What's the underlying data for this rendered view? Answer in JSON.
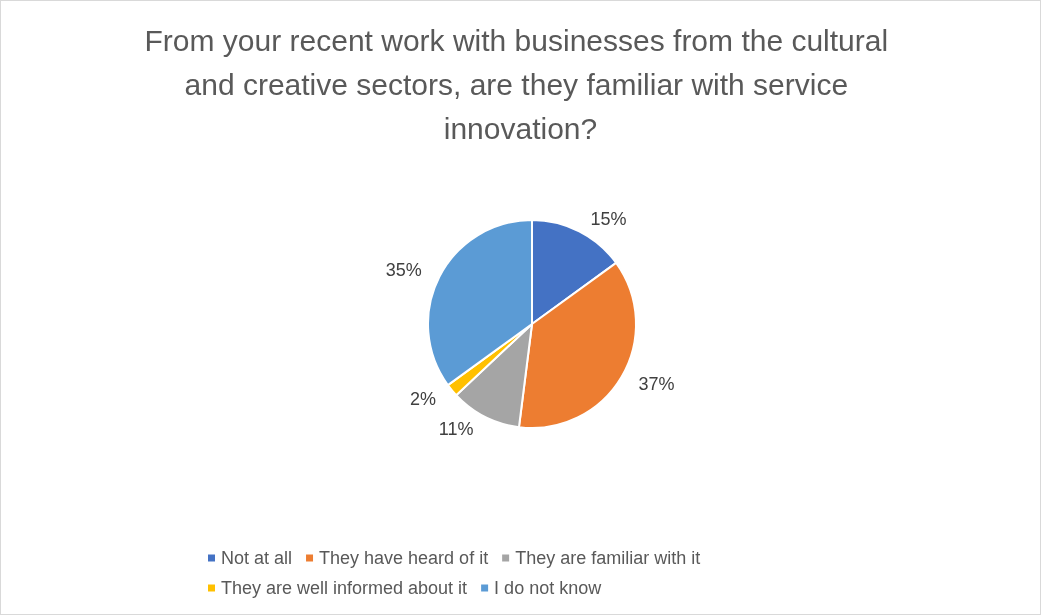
{
  "chart_data": {
    "type": "pie",
    "title": "From your recent work with businesses from the cultural and creative sectors, are they familiar with service innovation?",
    "categories": [
      "Not at all",
      "They have heard of it",
      "They are familiar with it",
      "They are well informed about it",
      "I do not know"
    ],
    "values": [
      15,
      37,
      11,
      2,
      35
    ],
    "value_labels": [
      "15%",
      "37%",
      "11%",
      "2%",
      "35%"
    ],
    "colors": [
      "#4472c4",
      "#ed7d31",
      "#a5a5a5",
      "#ffc000",
      "#5b9bd5"
    ],
    "legend": "bottom"
  }
}
